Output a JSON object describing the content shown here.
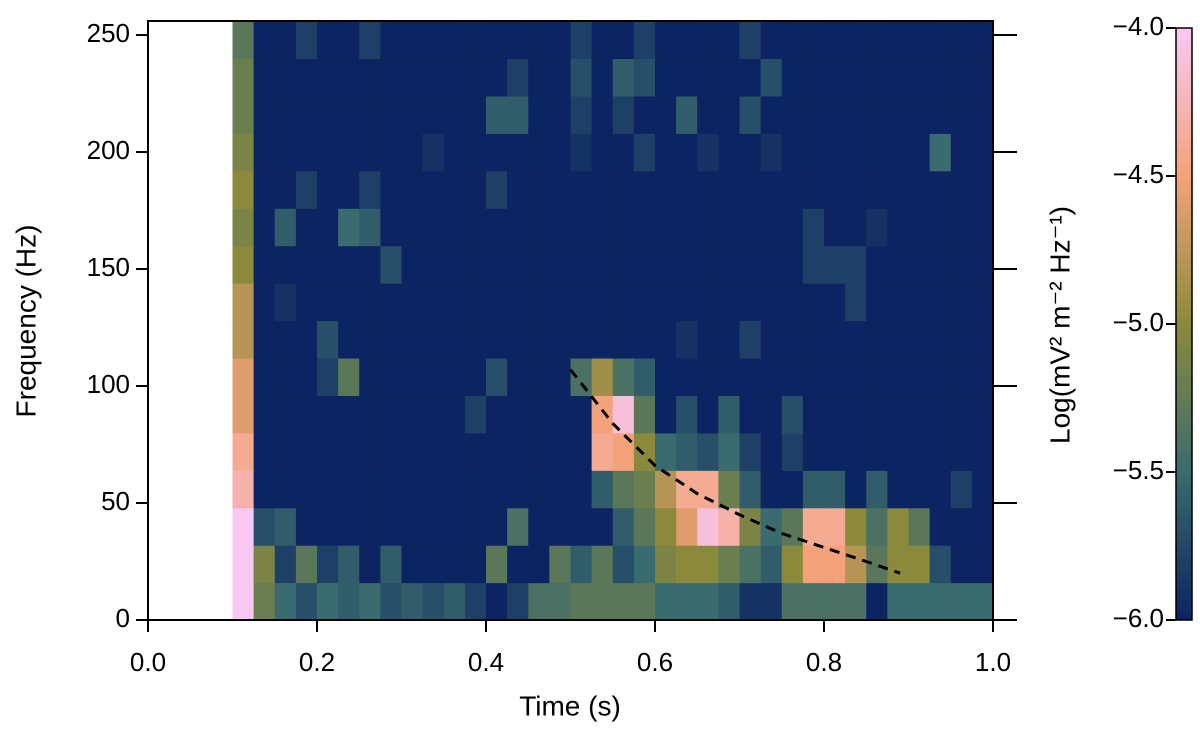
{
  "chart_data": {
    "type": "heatmap",
    "xlabel": "Time (s)",
    "ylabel": "Frequency (Hz)",
    "colorbar_label": "Log(mV² m⁻² Hz⁻¹)",
    "xlim": [
      0,
      1
    ],
    "xticks": [
      {
        "value": 0,
        "label": "0.0"
      },
      0.2,
      0.4,
      0.6,
      0.8,
      {
        "value": 1,
        "label": "1.0"
      }
    ],
    "ylim": [
      0,
      256
    ],
    "yticks": [
      0,
      50,
      100,
      150,
      200,
      250
    ],
    "zlim": [
      -6,
      -4
    ],
    "zticks": [
      {
        "value": -6,
        "label": "−6.0"
      },
      {
        "value": -5.5,
        "label": "−5.5"
      },
      {
        "value": -5,
        "label": "−5.0"
      },
      {
        "value": -4.5,
        "label": "−4.5"
      },
      {
        "value": -4,
        "label": "−4.0"
      }
    ],
    "colors": [
      "#0c2461",
      "#3a6b6e",
      "#8b8a3c",
      "#f4a27a",
      "#f8c8f2"
    ],
    "xbins": [
      0.1,
      0.125,
      0.15,
      0.175,
      0.2,
      0.225,
      0.25,
      0.275,
      0.3,
      0.325,
      0.35,
      0.375,
      0.4,
      0.425,
      0.45,
      0.475,
      0.5,
      0.525,
      0.55,
      0.575,
      0.6,
      0.625,
      0.65,
      0.675,
      0.7,
      0.725,
      0.75,
      0.775,
      0.8,
      0.825,
      0.85,
      0.875,
      0.9,
      0.925,
      0.95,
      0.975,
      1.0
    ],
    "ybins": [
      0,
      16,
      32,
      48,
      64,
      80,
      96,
      112,
      128,
      144,
      160,
      176,
      192,
      208,
      224,
      240,
      256
    ],
    "z": [
      [
        -4.0,
        -5.2,
        -5.5,
        -5.7,
        -5.5,
        -5.6,
        -5.5,
        -5.7,
        -5.6,
        -5.7,
        -5.6,
        -5.8,
        -6,
        -5.8,
        -5.4,
        -5.4,
        -5.3,
        -5.3,
        -5.3,
        -5.3,
        -5.5,
        -5.5,
        -5.5,
        -5.6,
        -5.9,
        -5.9,
        -5.4,
        -5.4,
        -5.4,
        -5.4,
        -6,
        -5.5,
        -5.5,
        -5.5,
        -5.5,
        -5.5
      ],
      [
        -4.0,
        -5.1,
        -5.8,
        -5.3,
        -5.8,
        -5.6,
        -6,
        -5.6,
        -6,
        -6,
        -6,
        -6,
        -5.3,
        -6,
        -6,
        -5.3,
        -5.6,
        -5.3,
        -5.7,
        -5.5,
        -5.1,
        -5.0,
        -5.0,
        -5.2,
        -5.4,
        -5.6,
        -5.0,
        -4.5,
        -4.5,
        -4.8,
        -5.3,
        -5.0,
        -5.0,
        -5.7,
        -6,
        -6
      ],
      [
        -4.0,
        -5.7,
        -5.6,
        -6,
        -6,
        -6,
        -6,
        -6,
        -6,
        -6,
        -6,
        -6,
        -6,
        -5.4,
        -6,
        -6,
        -6,
        -6,
        -5.6,
        -5.3,
        -5.0,
        -4.6,
        -4.1,
        -4.3,
        -5.1,
        -5.5,
        -5.3,
        -4.4,
        -4.4,
        -5.0,
        -5.4,
        -5.0,
        -5.3,
        -6,
        -6,
        -6
      ],
      [
        -4.3,
        -6,
        -6,
        -6,
        -6,
        -6,
        -6,
        -6,
        -6,
        -6,
        -6,
        -6,
        -6,
        -6,
        -6,
        -6,
        -6,
        -5.6,
        -5.3,
        -5.2,
        -4.8,
        -4.4,
        -4.4,
        -5.2,
        -5.6,
        -6,
        -6,
        -5.6,
        -5.6,
        -6,
        -5.6,
        -6,
        -6,
        -6,
        -5.8,
        -6
      ],
      [
        -4.4,
        -6,
        -6,
        -6,
        -6,
        -6,
        -6,
        -6,
        -6,
        -6,
        -6,
        -6,
        -6,
        -6,
        -6,
        -6,
        -6,
        -4.4,
        -4.5,
        -5.0,
        -5.5,
        -5.6,
        -5.7,
        -5.5,
        -5.8,
        -6,
        -5.8,
        -6,
        -6,
        -6,
        -6,
        -6,
        -6,
        -6,
        -6,
        -6
      ],
      [
        -4.6,
        -6,
        -6,
        -6,
        -6,
        -6,
        -6,
        -6,
        -6,
        -6,
        -6,
        -5.8,
        -6,
        -6,
        -6,
        -6,
        -6,
        -4.5,
        -4.1,
        -5.3,
        -6,
        -5.7,
        -6,
        -5.6,
        -6,
        -6,
        -5.7,
        -6,
        -6,
        -6,
        -6,
        -6,
        -6,
        -6,
        -6,
        -6
      ],
      [
        -4.6,
        -6,
        -6,
        -6,
        -5.8,
        -5.3,
        -6,
        -6,
        -6,
        -6,
        -6,
        -6,
        -5.7,
        -6,
        -6,
        -6,
        -5.4,
        -4.9,
        -5.4,
        -5.6,
        -6,
        -6,
        -6,
        -6,
        -6,
        -6,
        -6,
        -6,
        -6,
        -6,
        -6,
        -6,
        -6,
        -6,
        -6,
        -6
      ],
      [
        -4.8,
        -6,
        -6,
        -6,
        -5.7,
        -6,
        -6,
        -6,
        -6,
        -6,
        -6,
        -6,
        -6,
        -6,
        -6,
        -6,
        -6,
        -6,
        -6,
        -6,
        -6,
        -5.9,
        -6,
        -6,
        -5.8,
        -6,
        -6,
        -6,
        -6,
        -6,
        -6,
        -6,
        -6,
        -6,
        -6,
        -6
      ],
      [
        -4.8,
        -6,
        -5.9,
        -6,
        -6,
        -6,
        -6,
        -6,
        -6,
        -6,
        -6,
        -6,
        -6,
        -6,
        -6,
        -6,
        -6,
        -6,
        -6,
        -6,
        -6,
        -6,
        -6,
        -6,
        -6,
        -6,
        -6,
        -6,
        -6,
        -5.8,
        -6,
        -6,
        -6,
        -6,
        -6,
        -6
      ],
      [
        -5.0,
        -6,
        -6,
        -6,
        -6,
        -6,
        -6,
        -5.7,
        -6,
        -6,
        -6,
        -6,
        -6,
        -6,
        -6,
        -6,
        -6,
        -6,
        -6,
        -6,
        -6,
        -6,
        -6,
        -6,
        -6,
        -6,
        -6,
        -5.8,
        -5.8,
        -5.8,
        -6,
        -6,
        -6,
        -6,
        -6,
        -6
      ],
      [
        -5.1,
        -6,
        -5.6,
        -6,
        -6,
        -5.5,
        -5.6,
        -6,
        -6,
        -6,
        -6,
        -6,
        -6,
        -6,
        -6,
        -6,
        -6,
        -6,
        -6,
        -6,
        -6,
        -6,
        -6,
        -6,
        -6,
        -6,
        -6,
        -5.8,
        -6,
        -6,
        -5.9,
        -6,
        -6,
        -6,
        -6,
        -6
      ],
      [
        -5.0,
        -6,
        -6,
        -5.8,
        -6,
        -6,
        -5.8,
        -6,
        -6,
        -6,
        -6,
        -6,
        -5.8,
        -6,
        -6,
        -6,
        -6,
        -6,
        -6,
        -6,
        -6,
        -6,
        -6,
        -6,
        -6,
        -6,
        -6,
        -6,
        -6,
        -6,
        -6,
        -6,
        -6,
        -6,
        -6,
        -6
      ],
      [
        -5.1,
        -6,
        -6,
        -6,
        -6,
        -6,
        -6,
        -6,
        -6,
        -5.9,
        -6,
        -6,
        -6,
        -6,
        -6,
        -6,
        -5.9,
        -6,
        -6,
        -5.8,
        -6,
        -6,
        -5.9,
        -6,
        -6,
        -5.9,
        -6,
        -6,
        -6,
        -6,
        -6,
        -6,
        -6,
        -5.5,
        -6,
        -6
      ],
      [
        -5.2,
        -6,
        -6,
        -6,
        -6,
        -6,
        -6,
        -6,
        -6,
        -6,
        -6,
        -6,
        -5.6,
        -5.6,
        -6,
        -6,
        -5.8,
        -6,
        -5.8,
        -6,
        -6,
        -5.6,
        -6,
        -6,
        -5.7,
        -6,
        -6,
        -6,
        -6,
        -6,
        -6,
        -6,
        -6,
        -6,
        -6,
        -6
      ],
      [
        -5.2,
        -6,
        -6,
        -6,
        -6,
        -6,
        -6,
        -6,
        -6,
        -6,
        -6,
        -6,
        -6,
        -5.8,
        -6,
        -6,
        -5.7,
        -6,
        -5.6,
        -5.7,
        -6,
        -6,
        -6,
        -6,
        -6,
        -5.7,
        -6,
        -6,
        -6,
        -6,
        -6,
        -6,
        -6,
        -6,
        -6,
        -6
      ],
      [
        -5.3,
        -6,
        -6,
        -5.8,
        -6,
        -6,
        -5.8,
        -6,
        -6,
        -6,
        -6,
        -6,
        -6,
        -6,
        -6,
        -6,
        -5.8,
        -6,
        -6,
        -5.8,
        -6,
        -6,
        -6,
        -6,
        -5.8,
        -6,
        -6,
        -6,
        -6,
        -6,
        -6,
        -6,
        -6,
        -6,
        -6,
        -6
      ]
    ],
    "curve": {
      "color": "#000000",
      "x": [
        0.5,
        0.55,
        0.6,
        0.65,
        0.7,
        0.75,
        0.8,
        0.85,
        0.89
      ],
      "y": [
        107,
        84,
        66,
        54,
        45,
        37,
        31,
        25,
        20
      ]
    }
  }
}
